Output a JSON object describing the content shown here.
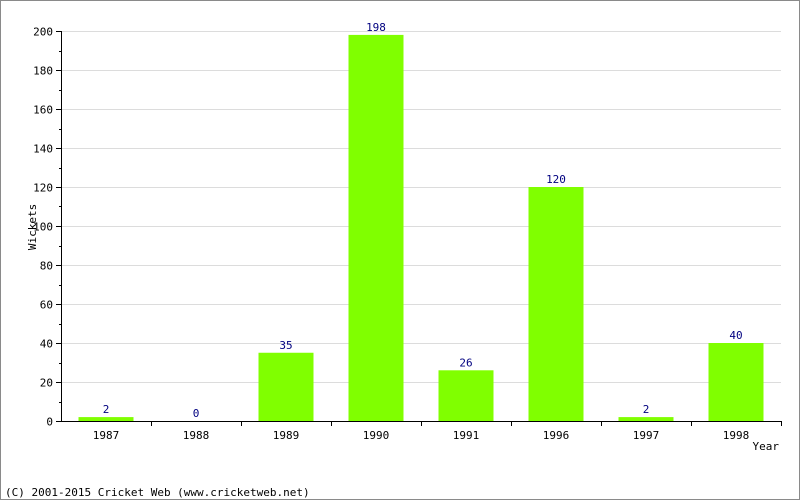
{
  "chart_data": {
    "type": "bar",
    "categories": [
      "1987",
      "1988",
      "1989",
      "1990",
      "1991",
      "1996",
      "1997",
      "1998"
    ],
    "values": [
      2,
      0,
      35,
      198,
      26,
      120,
      2,
      40
    ],
    "xlabel": "Year",
    "ylabel": "Wickets",
    "ylim": [
      0,
      200
    ],
    "yticks": [
      0,
      20,
      40,
      60,
      80,
      100,
      120,
      140,
      160,
      180,
      200
    ],
    "grid": true,
    "bar_color": "#80ff00",
    "label_color": "#000080"
  },
  "footer": {
    "copyright": "(C) 2001-2015 Cricket Web (www.cricketweb.net)"
  }
}
